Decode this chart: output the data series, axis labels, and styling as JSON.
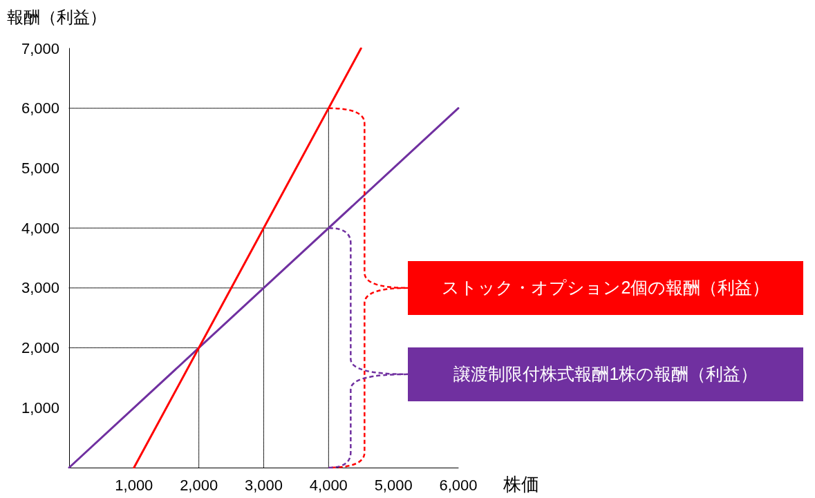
{
  "chart_data": {
    "type": "line",
    "xlabel": "株価",
    "ylabel": "報酬（利益）",
    "xlim": [
      0,
      6000
    ],
    "ylim": [
      0,
      7000
    ],
    "xticks": [
      {
        "value": 1000,
        "label": "1,000"
      },
      {
        "value": 2000,
        "label": "2,000"
      },
      {
        "value": 3000,
        "label": "3,000"
      },
      {
        "value": 4000,
        "label": "4,000"
      },
      {
        "value": 5000,
        "label": "5,000"
      },
      {
        "value": 6000,
        "label": "6,000"
      }
    ],
    "yticks": [
      {
        "value": 1000,
        "label": "1,000"
      },
      {
        "value": 2000,
        "label": "2,000"
      },
      {
        "value": 3000,
        "label": "3,000"
      },
      {
        "value": 4000,
        "label": "4,000"
      },
      {
        "value": 5000,
        "label": "5,000"
      },
      {
        "value": 6000,
        "label": "6,000"
      },
      {
        "value": 7000,
        "label": "7,000"
      }
    ],
    "grid": false,
    "marker": "none",
    "series": [
      {
        "color": "#000000",
        "line_style": "dotted",
        "x": [
          0,
          4000,
          4000
        ],
        "values": [
          6000,
          6000,
          0
        ]
      },
      {
        "color": "#000000",
        "line_style": "dotted",
        "x": [
          0,
          4000
        ],
        "values": [
          4000,
          4000
        ]
      },
      {
        "color": "#000000",
        "line_style": "dotted",
        "x": [
          0,
          3000
        ],
        "values": [
          3000,
          3000
        ]
      },
      {
        "color": "#000000",
        "line_style": "dotted",
        "x": [
          3000,
          3000
        ],
        "values": [
          0,
          4000
        ]
      },
      {
        "color": "#000000",
        "line_style": "dotted",
        "x": [
          0,
          2000,
          2000
        ],
        "values": [
          2000,
          2000,
          0
        ]
      },
      {
        "color": "#7030a0",
        "line_style": "solid",
        "x": [
          0,
          6000
        ],
        "values": [
          0,
          6000
        ]
      },
      {
        "color": "#ff0000",
        "line_style": "solid",
        "x": [
          1000,
          4500
        ],
        "values": [
          0,
          7000
        ]
      }
    ],
    "annotations": [
      "ストック・オプション2個の報酬（利益）",
      "譲渡制限付株式報酬1株の報酬（利益）"
    ]
  }
}
